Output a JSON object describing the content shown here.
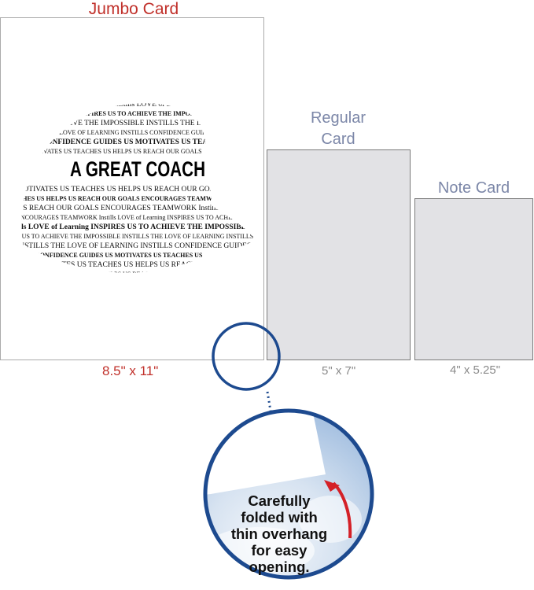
{
  "jumbo": {
    "title": "Jumbo Card",
    "size": "8.5\" x 11\"",
    "cap_headline": "A GREAT COACH",
    "cap_phrases": [
      "ENCOURAGES TEAMWORK",
      "Instills LOVE of Learning",
      "INSPIRES US TO ACHIEVE THE IMPOSSIBLE",
      "INSTILLS THE LOVE OF LEARNING",
      "INSTILLS CONFIDENCE",
      "GUIDES US",
      "MOTIVATES US",
      "TEACHES US",
      "HELPS US REACH OUR GOALS"
    ]
  },
  "regular": {
    "title_line1": "Regular",
    "title_line2": "Card",
    "size": "5\" x 7\""
  },
  "note": {
    "title": "Note Card",
    "size": "4\" x 5.25\""
  },
  "callout": {
    "lines": [
      "Carefully",
      "folded with",
      "thin overhang",
      "for easy",
      "opening."
    ]
  },
  "colors": {
    "jumbo_title": "#c0302a",
    "card_title": "#7c87a8",
    "card_fill": "#e2e2e5",
    "circle": "#1d4a8f",
    "arrow": "#d42027"
  }
}
